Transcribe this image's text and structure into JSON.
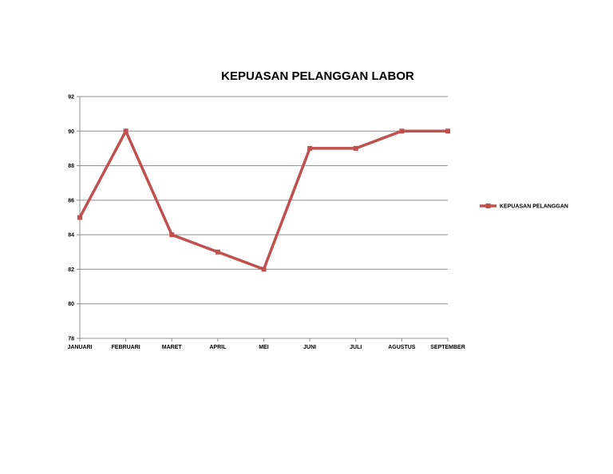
{
  "chart_data": {
    "type": "line",
    "title": "KEPUASAN PELANGGAN LABOR",
    "xlabel": "",
    "ylabel": "",
    "categories": [
      "JANUARI",
      "FEBRUARI",
      "MARET",
      "APRIL",
      "MEI",
      "JUNI",
      "JULI",
      "AGUSTUS",
      "SEPTEMBER"
    ],
    "series": [
      {
        "name": "KEPUASAN PELANGGAN",
        "values": [
          85,
          90,
          84,
          83,
          82,
          89,
          89,
          90,
          90
        ],
        "color": "#c0504d"
      }
    ],
    "ylim": [
      78,
      92
    ],
    "yticks": [
      "78",
      "80",
      "82",
      "84",
      "86",
      "88",
      "90",
      "92"
    ],
    "grid": "horizontal",
    "legend_position": "right"
  }
}
